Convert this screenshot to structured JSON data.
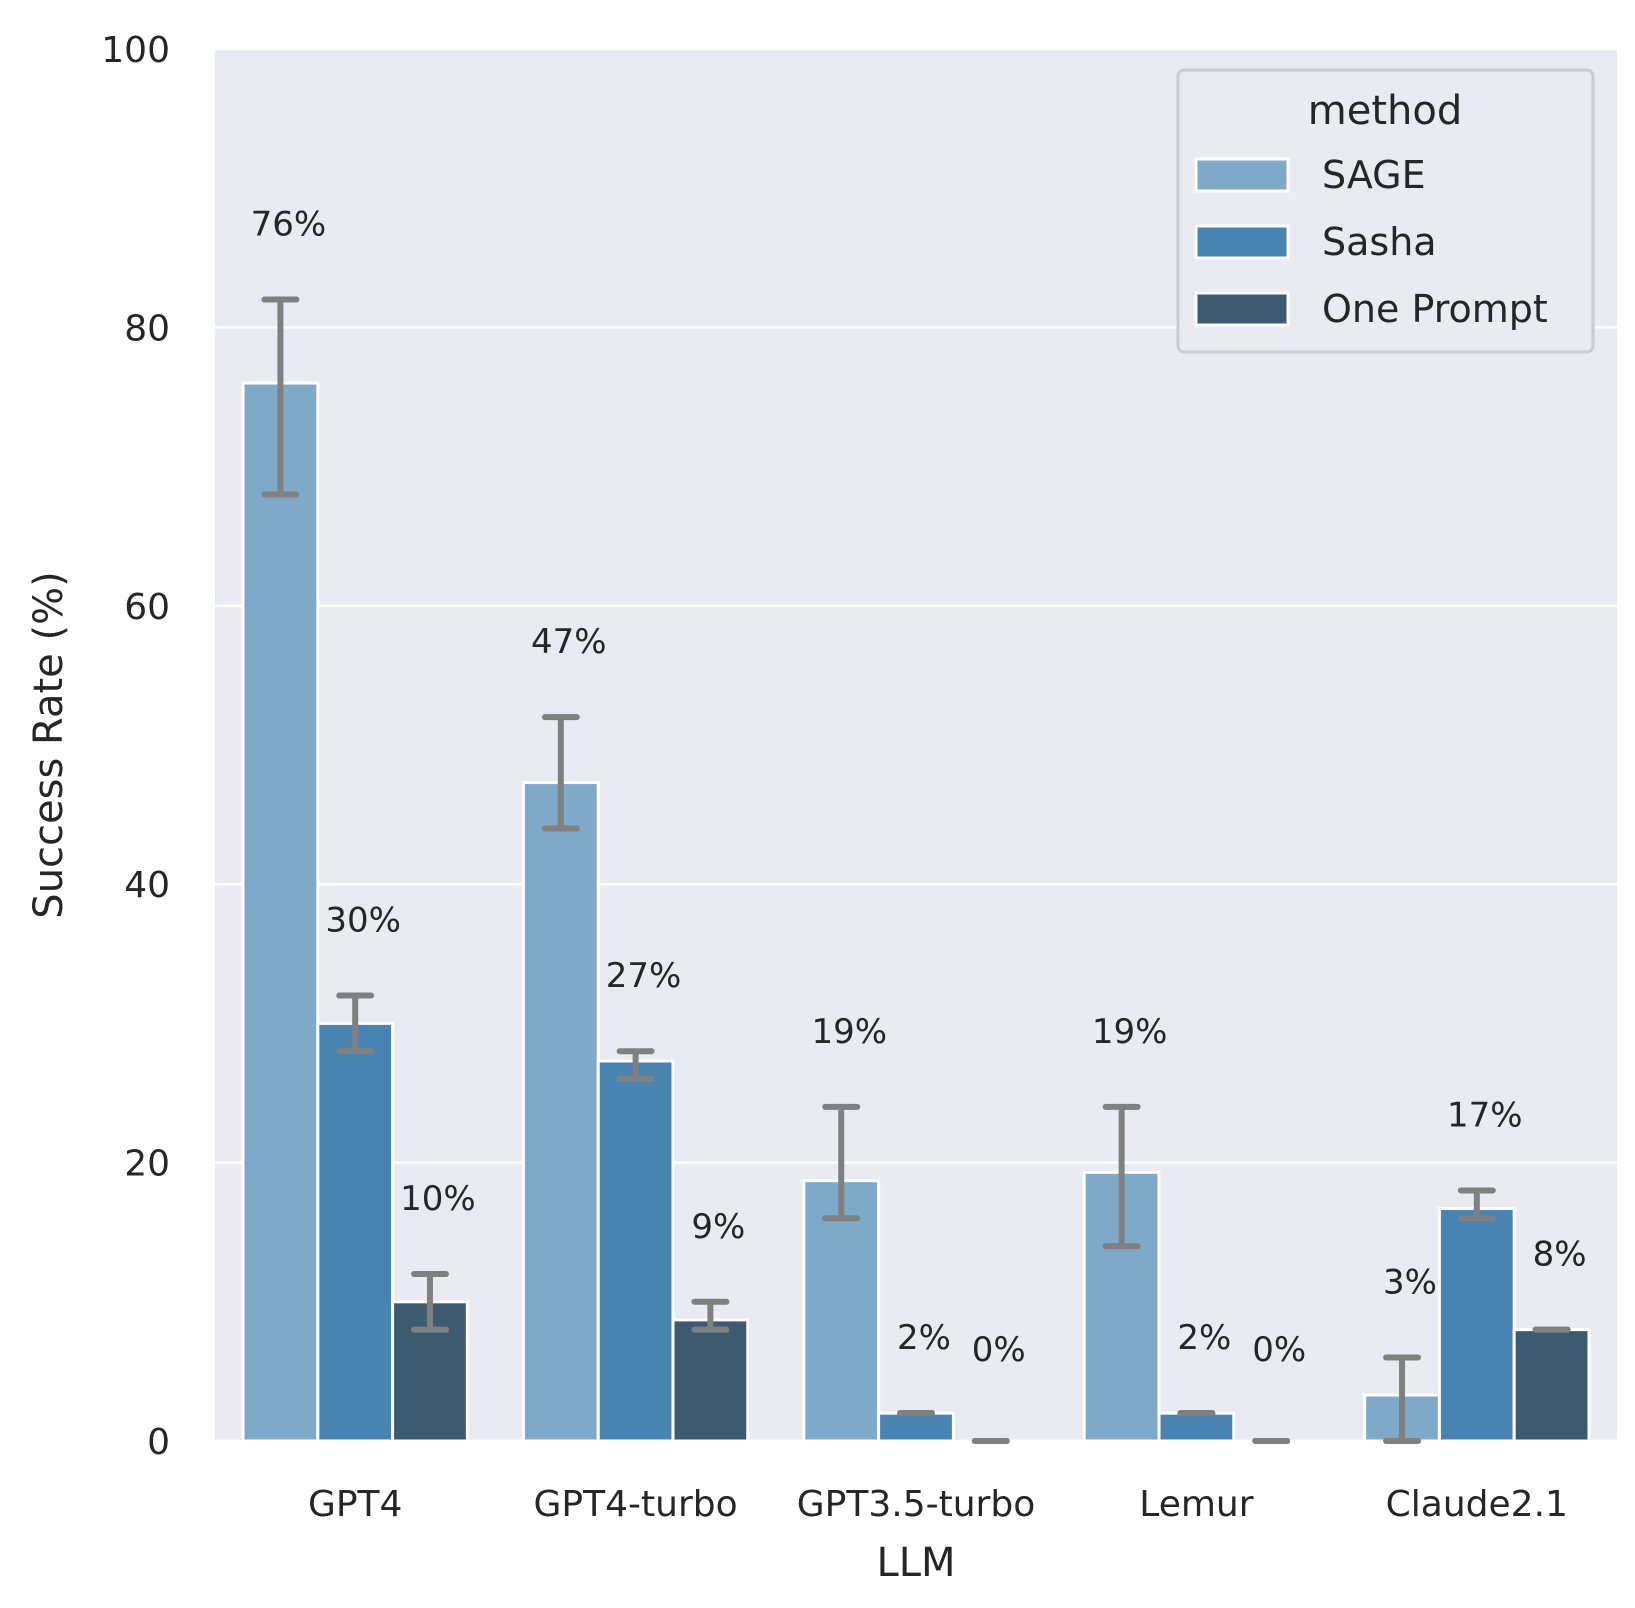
{
  "chart_data": {
    "type": "bar",
    "title": "",
    "xlabel": "LLM",
    "ylabel": "Success Rate (%)",
    "ylim": [
      0,
      100
    ],
    "yticks": [
      "0",
      "20",
      "40",
      "60",
      "80",
      "100"
    ],
    "grid": true,
    "categories": [
      "GPT4",
      "GPT4-turbo",
      "GPT3.5-turbo",
      "Lemur",
      "Claude2.1"
    ],
    "legend": {
      "title": "method",
      "placement": "top-right"
    },
    "series": [
      {
        "name": "SAGE",
        "color": "#7fa9c9",
        "values": [
          76,
          47.3,
          18.7,
          19.3,
          3.3
        ],
        "err_low": [
          68,
          44,
          16,
          14,
          0
        ],
        "err_high": [
          82,
          52,
          24,
          24,
          6
        ],
        "labels": [
          "76%",
          "47%",
          "19%",
          "19%",
          "3%"
        ]
      },
      {
        "name": "Sasha",
        "color": "#4884b1",
        "values": [
          30,
          27.3,
          2,
          2,
          16.7
        ],
        "err_low": [
          28,
          26,
          2,
          2,
          16
        ],
        "err_high": [
          32,
          28,
          2,
          2,
          18
        ],
        "labels": [
          "30%",
          "27%",
          "2%",
          "2%",
          "17%"
        ]
      },
      {
        "name": "One Prompt",
        "color": "#3c5a70",
        "values": [
          10,
          8.7,
          0,
          0,
          8
        ],
        "err_low": [
          8,
          8,
          0,
          0,
          8
        ],
        "err_high": [
          12,
          10,
          0,
          0,
          8
        ],
        "labels": [
          "10%",
          "9%",
          "0%",
          "0%",
          "8%"
        ]
      }
    ]
  }
}
